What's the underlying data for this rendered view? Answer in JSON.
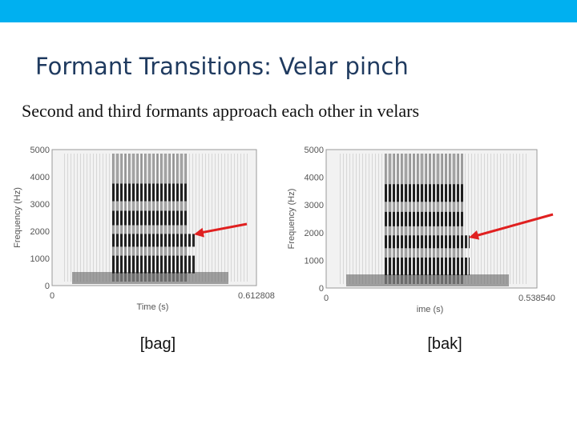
{
  "header": {
    "title": "Formant Transitions: Velar pinch"
  },
  "subtitle": "Second and third formants approach each other in velars",
  "figures": [
    {
      "y_axis_label": "Frequency (Hz)",
      "y_tick_labels": [
        "5000",
        "4000",
        "3000",
        "2000",
        "1000",
        "0"
      ],
      "x_tick_labels": [
        "0",
        "0.612808"
      ],
      "x_axis_label": "Time (s)",
      "caption": "[bag]"
    },
    {
      "y_axis_label": "Frequency (Hz)",
      "y_tick_labels": [
        "5000",
        "4000",
        "3000",
        "2000",
        "1000",
        "0"
      ],
      "x_tick_labels": [
        "0",
        "0.538540"
      ],
      "x_axis_label": "ime (s)",
      "caption": "[bak]"
    }
  ]
}
